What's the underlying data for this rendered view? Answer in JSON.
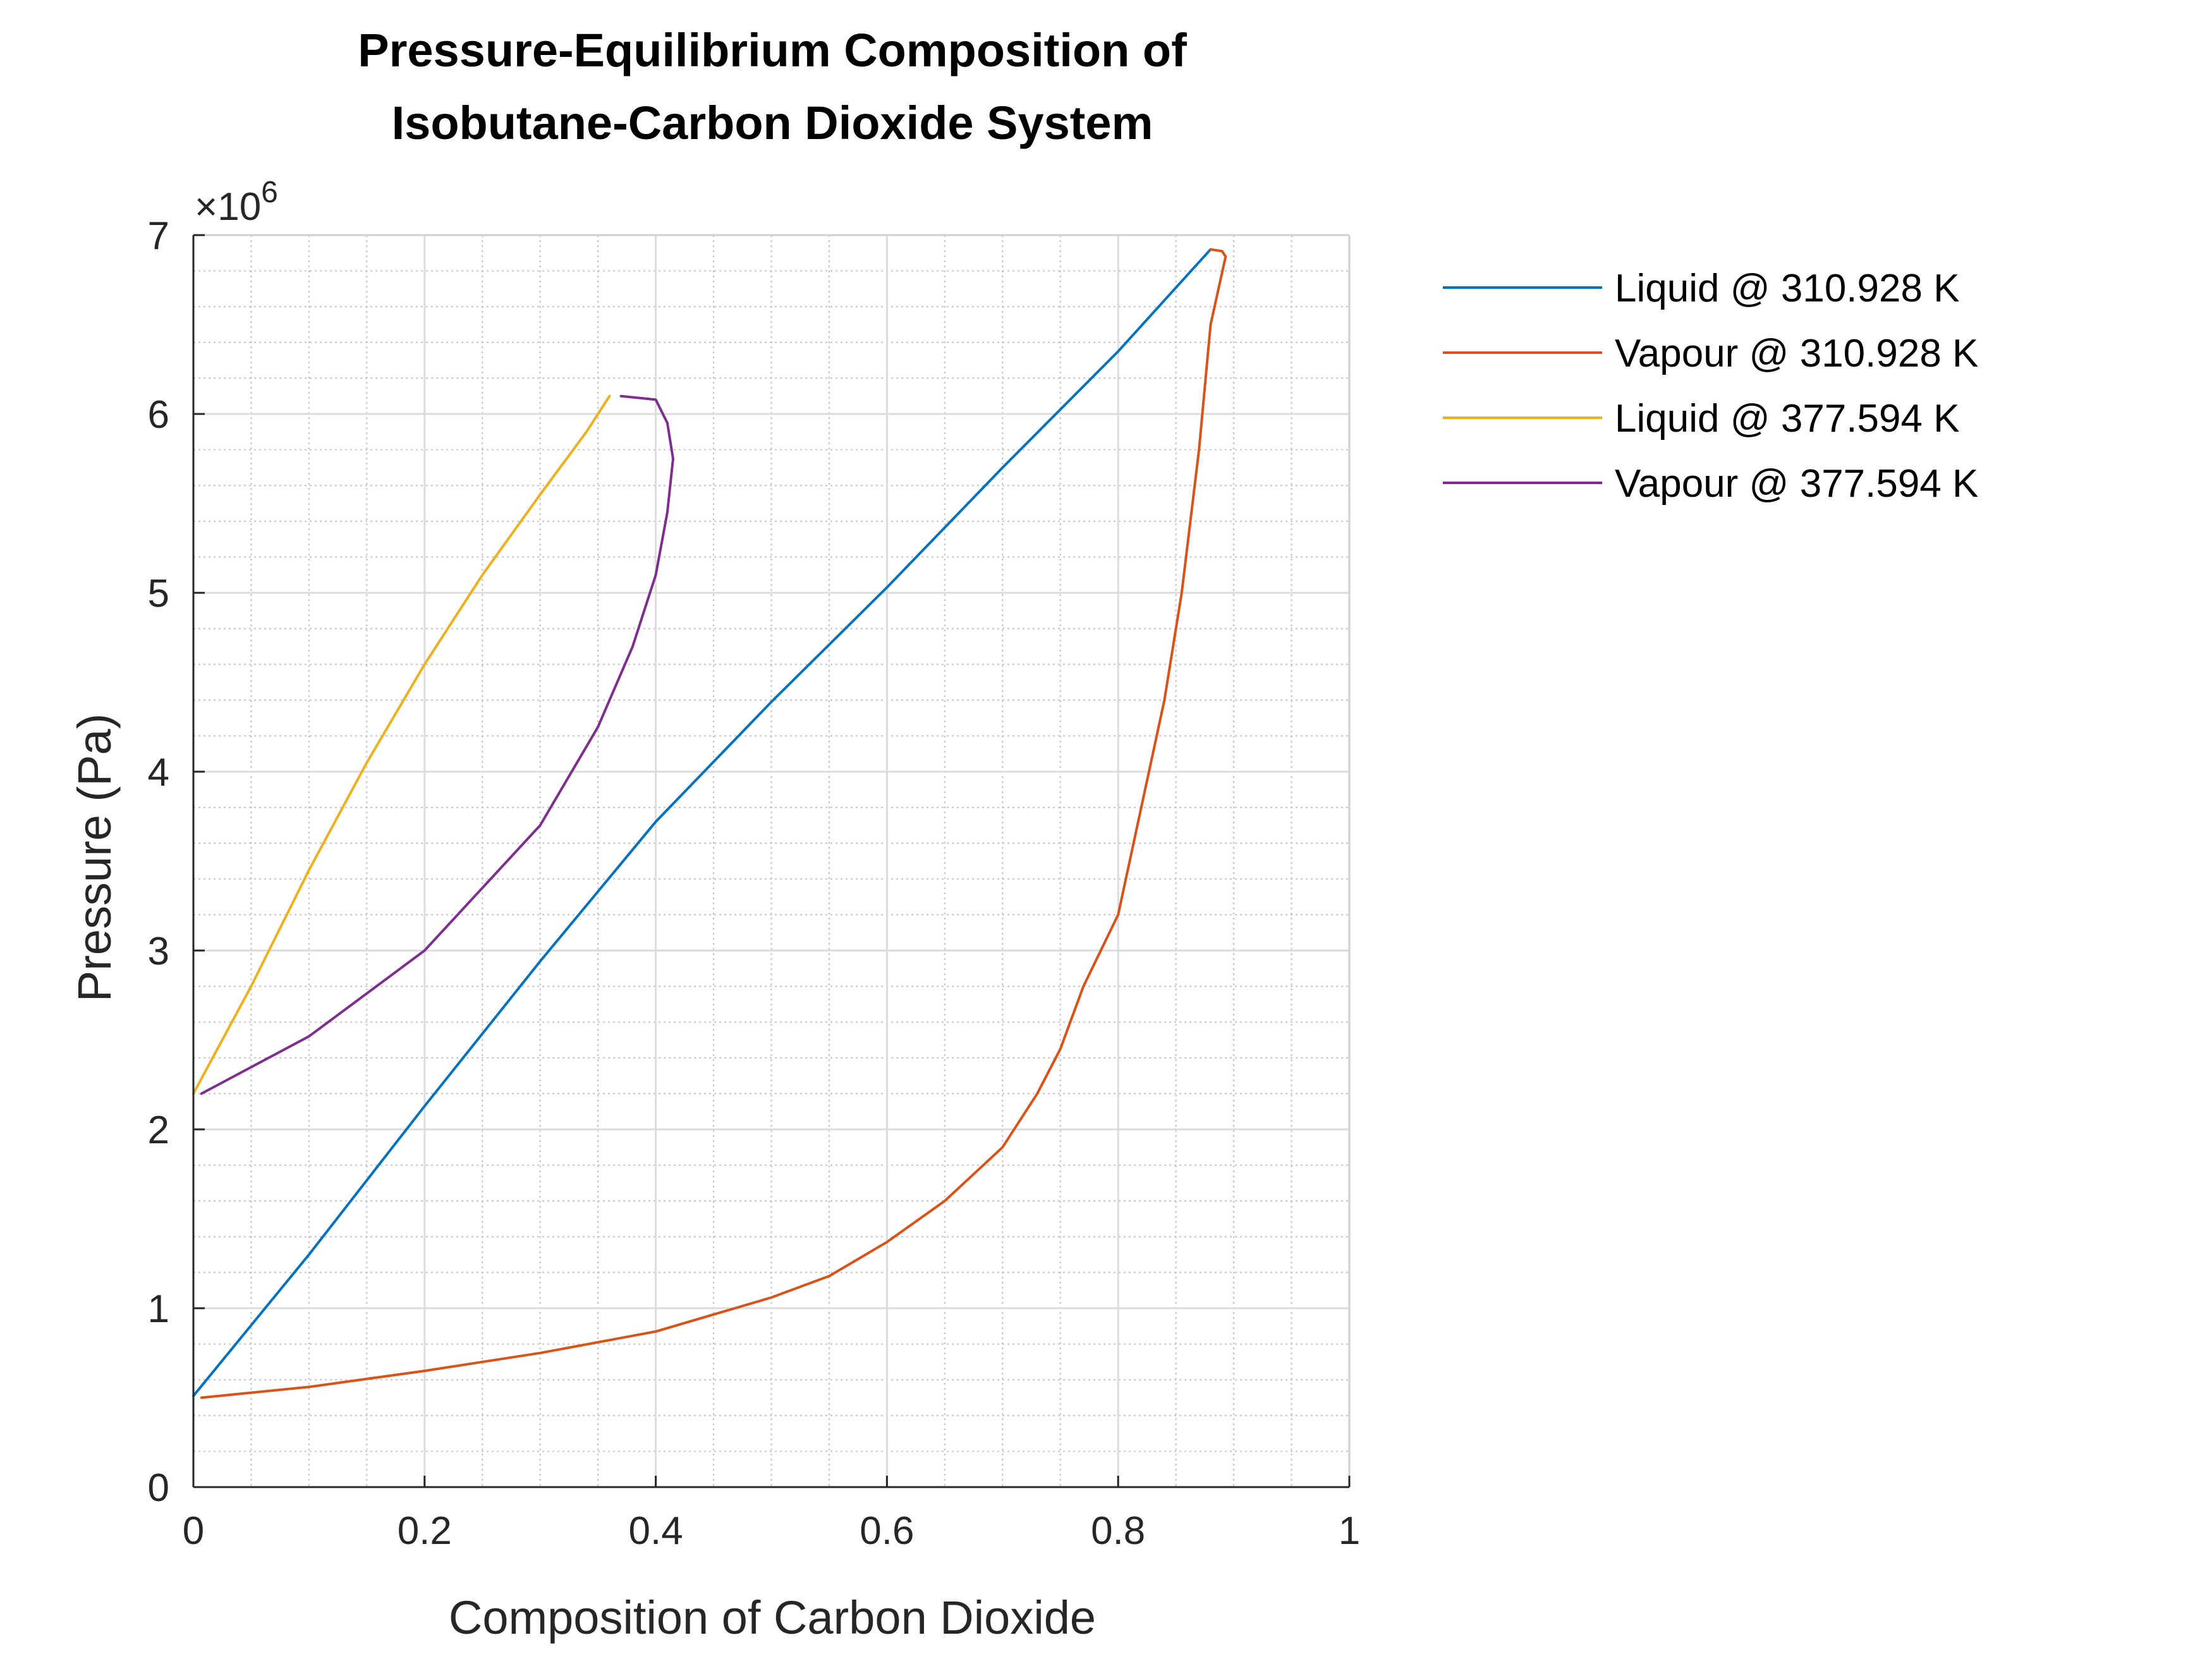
{
  "chart_data": {
    "type": "line",
    "title_lines": [
      "Pressure-Equilibrium Composition of",
      "Isobutane-Carbon Dioxide System"
    ],
    "xlabel": "Composition of Carbon Dioxide",
    "ylabel": "Pressure (Pa)",
    "exponent_label": {
      "base": "×10",
      "power": "6"
    },
    "xlim": [
      0,
      1
    ],
    "ylim": [
      0,
      7000000
    ],
    "xticks": [
      0,
      0.2,
      0.4,
      0.6,
      0.8,
      1
    ],
    "xtick_labels": [
      "0",
      "0.2",
      "0.4",
      "0.6",
      "0.8",
      "1"
    ],
    "yticks": [
      0,
      1000000,
      2000000,
      3000000,
      4000000,
      5000000,
      6000000,
      7000000
    ],
    "ytick_labels": [
      "0",
      "1",
      "2",
      "3",
      "4",
      "5",
      "6",
      "7"
    ],
    "grid": "major and minor",
    "legend_placement": "outside top-right",
    "series": [
      {
        "name": "Liquid @ 310.928 K",
        "color": "#0072BD",
        "points": [
          [
            0.0,
            510000
          ],
          [
            0.1,
            1300000
          ],
          [
            0.2,
            2130000
          ],
          [
            0.3,
            2940000
          ],
          [
            0.4,
            3720000
          ],
          [
            0.5,
            4390000
          ],
          [
            0.6,
            5030000
          ],
          [
            0.7,
            5700000
          ],
          [
            0.8,
            6350000
          ],
          [
            0.88,
            6920000
          ]
        ]
      },
      {
        "name": "Vapour @ 310.928 K",
        "color": "#D95319",
        "points": [
          [
            0.007,
            500000
          ],
          [
            0.1,
            560000
          ],
          [
            0.2,
            650000
          ],
          [
            0.3,
            750000
          ],
          [
            0.4,
            870000
          ],
          [
            0.5,
            1060000
          ],
          [
            0.55,
            1180000
          ],
          [
            0.6,
            1370000
          ],
          [
            0.65,
            1600000
          ],
          [
            0.7,
            1900000
          ],
          [
            0.73,
            2200000
          ],
          [
            0.75,
            2450000
          ],
          [
            0.77,
            2800000
          ],
          [
            0.8,
            3200000
          ],
          [
            0.82,
            3800000
          ],
          [
            0.84,
            4400000
          ],
          [
            0.855,
            5000000
          ],
          [
            0.87,
            5800000
          ],
          [
            0.88,
            6500000
          ],
          [
            0.893,
            6880000
          ],
          [
            0.89,
            6910000
          ],
          [
            0.88,
            6920000
          ]
        ]
      },
      {
        "name": "Liquid @ 377.594 K",
        "color": "#EDB120",
        "points": [
          [
            0.0,
            2200000
          ],
          [
            0.05,
            2800000
          ],
          [
            0.1,
            3450000
          ],
          [
            0.15,
            4050000
          ],
          [
            0.2,
            4600000
          ],
          [
            0.25,
            5100000
          ],
          [
            0.3,
            5550000
          ],
          [
            0.34,
            5900000
          ],
          [
            0.36,
            6100000
          ]
        ]
      },
      {
        "name": "Vapour @ 377.594 K",
        "color": "#7E2F8E",
        "points": [
          [
            0.007,
            2200000
          ],
          [
            0.1,
            2520000
          ],
          [
            0.2,
            3000000
          ],
          [
            0.3,
            3700000
          ],
          [
            0.35,
            4250000
          ],
          [
            0.38,
            4700000
          ],
          [
            0.4,
            5100000
          ],
          [
            0.41,
            5450000
          ],
          [
            0.415,
            5750000
          ],
          [
            0.41,
            5950000
          ],
          [
            0.4,
            6080000
          ],
          [
            0.37,
            6100000
          ]
        ]
      }
    ]
  }
}
